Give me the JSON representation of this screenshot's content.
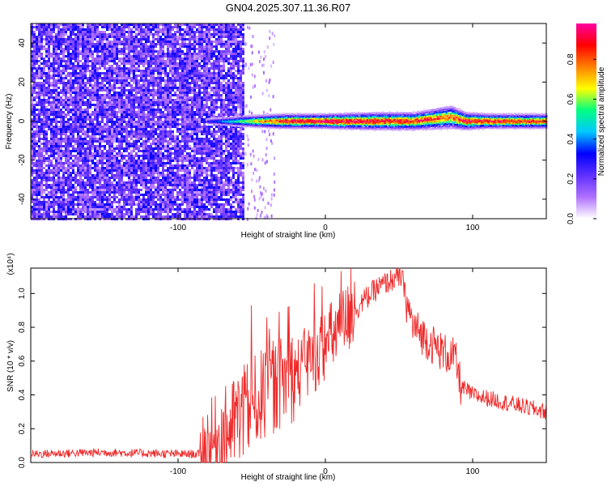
{
  "title": "GN04.2025.307.11.36.R07",
  "colorbar": {
    "label": "Normalized spectral amplitude",
    "ticks": [
      "0.0",
      "0.2",
      "0.4",
      "0.6",
      "0.8"
    ],
    "tick_values": [
      0.0,
      0.2,
      0.4,
      0.6,
      0.8
    ],
    "range": [
      0.0,
      0.98
    ],
    "colormap": [
      "#ffffff",
      "#b070ff",
      "#6030ff",
      "#0000ff",
      "#00c8ff",
      "#00ff80",
      "#ffff00",
      "#ff8000",
      "#ff0000",
      "#ff00a0"
    ]
  },
  "colors": {
    "snr_line": "#ee2a2a",
    "band_core": "#ff2020"
  },
  "chart_data": [
    {
      "type": "heatmap",
      "xlabel": "Height of straight line (km)",
      "ylabel": "Frequency (Hz)",
      "xlim": [
        -200,
        150
      ],
      "ylim": [
        -50,
        50
      ],
      "xticks": [
        -100,
        0,
        100
      ],
      "yticks": [
        -40,
        -20,
        0,
        20,
        40
      ],
      "xtick_labels": [
        "-100",
        "0",
        "100"
      ],
      "ytick_labels": [
        "-40",
        "-20",
        "0",
        "20",
        "40"
      ],
      "noise_region_x": [
        -200,
        -55
      ],
      "signal_band": {
        "x": [
          -80,
          -55,
          -30,
          0,
          30,
          60,
          85,
          95,
          110,
          150
        ],
        "center_hz": [
          0,
          0,
          0,
          0,
          0,
          0,
          2,
          0,
          0,
          0
        ],
        "half_width_hz": [
          1,
          2,
          2.5,
          2.5,
          3,
          3,
          4,
          3,
          2.5,
          2.5
        ],
        "peak_amplitude": [
          0.3,
          0.6,
          0.9,
          0.95,
          0.9,
          0.9,
          0.8,
          0.9,
          0.9,
          0.85
        ]
      }
    },
    {
      "type": "line",
      "xlabel": "Height of straight line (km)",
      "ylabel": "SNR (10 * v/v)",
      "y_multiplier": "(x10⁴)",
      "xlim": [
        -200,
        150
      ],
      "ylim": [
        0.0,
        1.15
      ],
      "xticks": [
        -100,
        0,
        100
      ],
      "yticks": [
        0.0,
        0.2,
        0.4,
        0.6,
        0.8,
        1.0
      ],
      "xtick_labels": [
        "-100",
        "0",
        "100"
      ],
      "ytick_labels": [
        "0.0",
        "0.2",
        "0.4",
        "0.6",
        "0.8",
        "1.0"
      ],
      "series": [
        {
          "x": [
            -200,
            -150,
            -100,
            -85,
            -75,
            -65,
            -55,
            -45,
            -35,
            -25,
            -15,
            -5,
            5,
            15,
            25,
            35,
            45,
            52,
            55,
            60,
            70,
            80,
            88,
            92,
            100,
            120,
            150
          ],
          "y": [
            0.05,
            0.06,
            0.05,
            0.05,
            0.12,
            0.2,
            0.3,
            0.38,
            0.45,
            0.5,
            0.55,
            0.65,
            0.75,
            0.85,
            0.95,
            1.03,
            1.08,
            1.1,
            0.95,
            0.8,
            0.72,
            0.65,
            0.62,
            0.45,
            0.4,
            0.36,
            0.3
          ]
        }
      ]
    }
  ]
}
